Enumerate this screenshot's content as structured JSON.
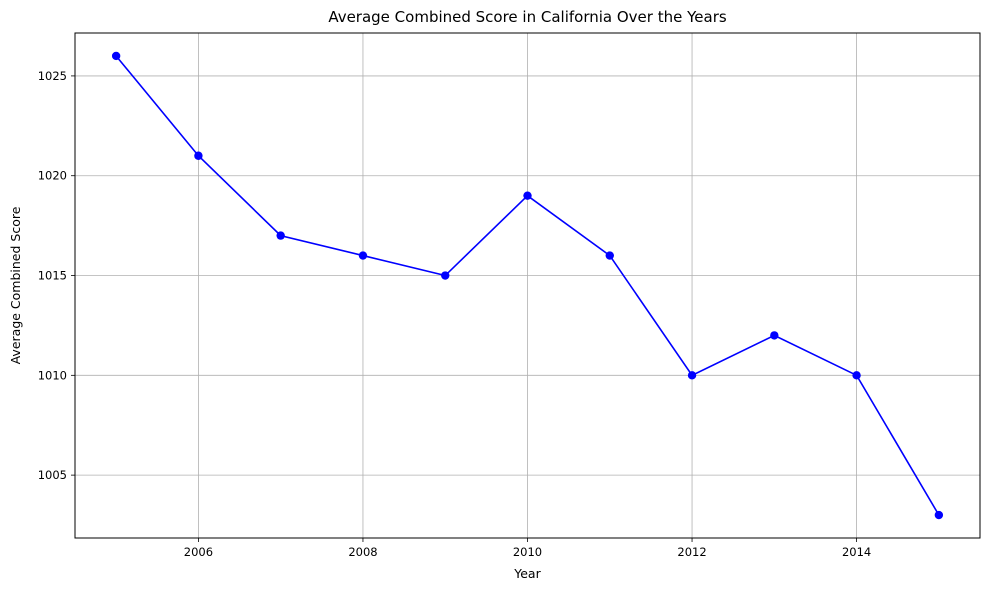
{
  "chart_data": {
    "type": "line",
    "title": "Average Combined Score in California Over the Years",
    "xlabel": "Year",
    "ylabel": "Average Combined Score",
    "xlim": [
      2004.5,
      2015.5
    ],
    "ylim": [
      1001.85,
      1027.15
    ],
    "x_ticks": [
      2006,
      2008,
      2010,
      2012,
      2014
    ],
    "y_ticks": [
      1005,
      1010,
      1015,
      1020,
      1025
    ],
    "grid": true,
    "legend": "none",
    "series": [
      {
        "color": "#0000ff",
        "marker": "circle",
        "x": [
          2005,
          2006,
          2007,
          2008,
          2009,
          2010,
          2011,
          2012,
          2013,
          2014,
          2015
        ],
        "values": [
          1026,
          1021,
          1017,
          1016,
          1015,
          1019,
          1016,
          1010,
          1012,
          1010,
          1003
        ]
      }
    ]
  }
}
